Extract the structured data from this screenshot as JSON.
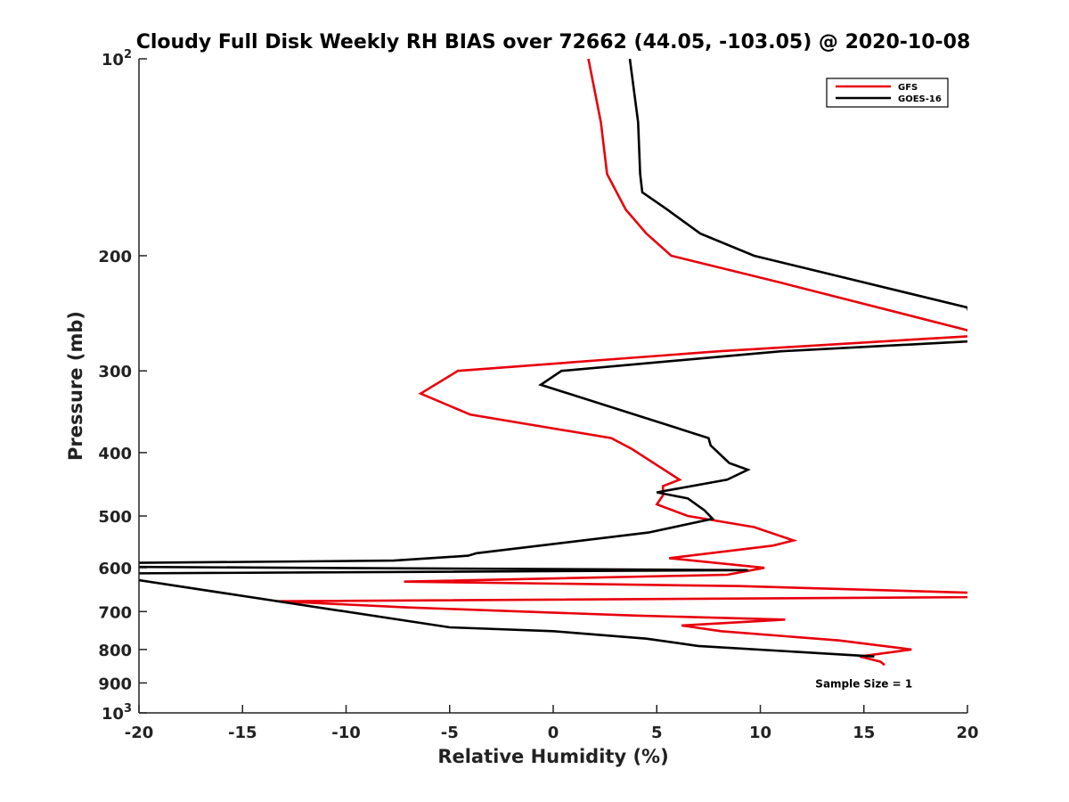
{
  "chart_data": {
    "type": "line",
    "title": "Cloudy Full Disk Weekly RH BIAS over 72662 (44.05, -103.05) @ 2020-10-08",
    "xlabel": "Relative Humidity (%)",
    "ylabel": "Pressure (mb)",
    "xlim": [
      -20,
      20
    ],
    "ylim": [
      1000,
      100
    ],
    "y_scale": "log",
    "y_reversed": true,
    "grid": false,
    "legend_position": "top-right",
    "x_ticks": [
      "-20",
      "-15",
      "-10",
      "-5",
      "0",
      "5",
      "10",
      "15",
      "20"
    ],
    "y_ticks": [
      {
        "value": 100,
        "base": "10",
        "exp": "2"
      },
      {
        "value": 200,
        "label": "200"
      },
      {
        "value": 300,
        "label": "300"
      },
      {
        "value": 400,
        "label": "400"
      },
      {
        "value": 500,
        "label": "500"
      },
      {
        "value": 600,
        "label": "600"
      },
      {
        "value": 700,
        "label": "700"
      },
      {
        "value": 800,
        "label": "800"
      },
      {
        "value": 900,
        "label": "900"
      },
      {
        "value": 1000,
        "base": "10",
        "exp": "3"
      }
    ],
    "series": [
      {
        "name": "GFS",
        "color": "#e8000b",
        "points": [
          [
            1.7,
            100
          ],
          [
            2.3,
            125
          ],
          [
            2.6,
            150
          ],
          [
            3.5,
            170
          ],
          [
            4.5,
            185
          ],
          [
            5.7,
            200
          ],
          [
            11.0,
            220
          ],
          [
            20.0,
            260
          ],
          [
            20.5,
            265
          ],
          [
            8.0,
            280
          ],
          [
            -4.6,
            300
          ],
          [
            -6.4,
            325
          ],
          [
            -4.0,
            350
          ],
          [
            2.8,
            380
          ],
          [
            3.8,
            395
          ],
          [
            6.1,
            440
          ],
          [
            5.3,
            450
          ],
          [
            5.3,
            465
          ],
          [
            5.0,
            480
          ],
          [
            6.5,
            500
          ],
          [
            9.7,
            520
          ],
          [
            11.6,
            545
          ],
          [
            10.6,
            555
          ],
          [
            5.6,
            580
          ],
          [
            10.2,
            600
          ],
          [
            8.4,
            615
          ],
          [
            -7.2,
            630
          ],
          [
            9.0,
            640
          ],
          [
            20.0,
            655
          ],
          [
            21.0,
            665
          ],
          [
            -13.3,
            675
          ],
          [
            -7.0,
            690
          ],
          [
            4.0,
            710
          ],
          [
            11.2,
            720
          ],
          [
            6.2,
            735
          ],
          [
            8.1,
            750
          ],
          [
            13.8,
            775
          ],
          [
            17.3,
            800
          ],
          [
            14.8,
            820
          ],
          [
            15.8,
            835
          ],
          [
            16.0,
            845
          ]
        ]
      },
      {
        "name": "GOES-16",
        "color": "#000000",
        "points": [
          [
            3.7,
            100
          ],
          [
            4.1,
            125
          ],
          [
            4.2,
            150
          ],
          [
            4.3,
            160
          ],
          [
            5.5,
            170
          ],
          [
            7.1,
            185
          ],
          [
            9.7,
            200
          ],
          [
            20.0,
            240
          ],
          [
            20.5,
            270
          ],
          [
            11.0,
            280
          ],
          [
            0.4,
            300
          ],
          [
            -0.6,
            315
          ],
          [
            2.7,
            340
          ],
          [
            7.5,
            380
          ],
          [
            7.6,
            390
          ],
          [
            8.5,
            415
          ],
          [
            9.4,
            425
          ],
          [
            8.4,
            440
          ],
          [
            5.0,
            460
          ],
          [
            6.5,
            470
          ],
          [
            7.3,
            490
          ],
          [
            7.7,
            505
          ],
          [
            4.6,
            530
          ],
          [
            -3.7,
            570
          ],
          [
            -4.1,
            575
          ],
          [
            -7.7,
            585
          ],
          [
            -21.0,
            590
          ],
          [
            -21.0,
            598
          ],
          [
            9.4,
            605
          ],
          [
            -21.0,
            612
          ],
          [
            -21.0,
            620
          ],
          [
            -5.0,
            740
          ],
          [
            0.0,
            750
          ],
          [
            4.5,
            770
          ],
          [
            7.0,
            790
          ],
          [
            15.5,
            820
          ]
        ]
      }
    ],
    "annotations": [
      {
        "text": "Sample Size = 1",
        "x": 15.0,
        "p": 900
      }
    ]
  }
}
